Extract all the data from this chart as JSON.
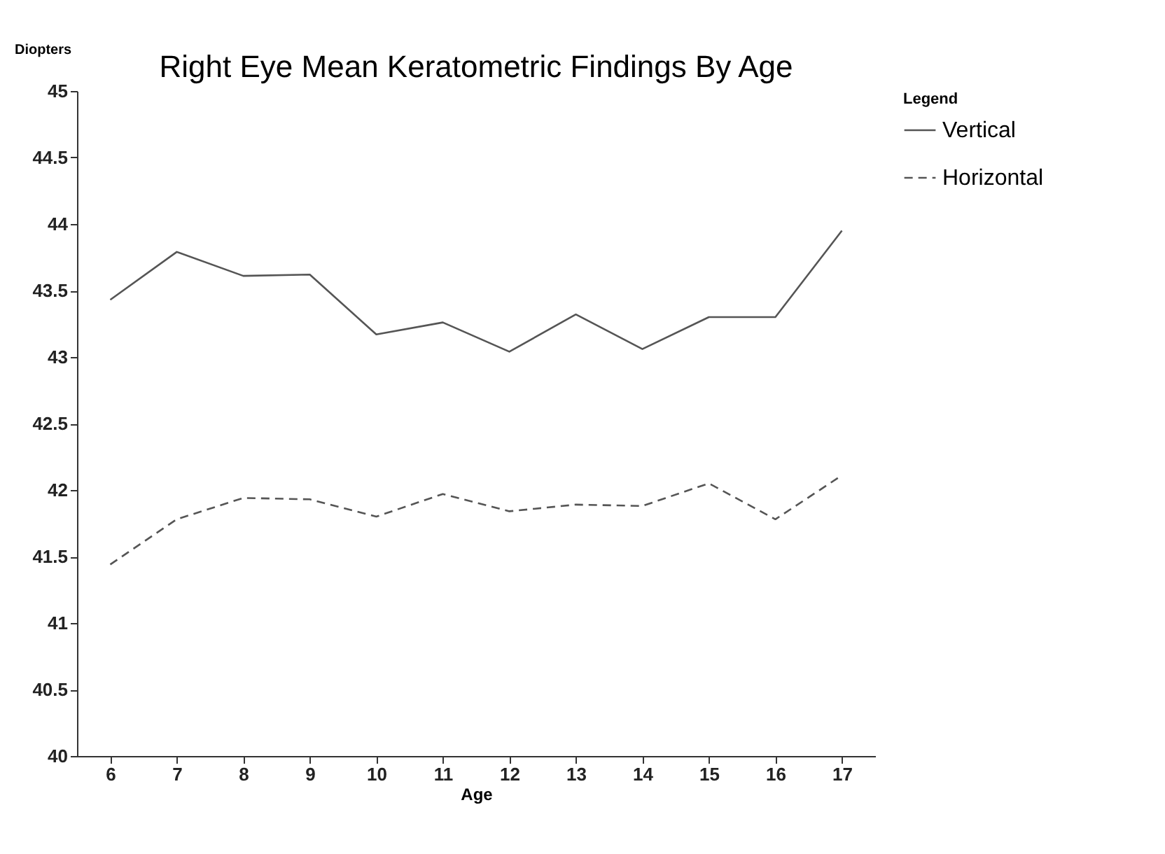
{
  "chart_data": {
    "type": "line",
    "title": "Right Eye Mean Keratometric Findings By Age",
    "xlabel": "Age",
    "ylabel": "Diopters",
    "legend_title": "Legend",
    "categories": [
      "6",
      "7",
      "8",
      "9",
      "10",
      "11",
      "12",
      "13",
      "14",
      "15",
      "16",
      "17"
    ],
    "series": [
      {
        "name": "Vertical",
        "color": "#555555",
        "line_style": "solid",
        "values": [
          43.43,
          43.79,
          43.61,
          43.62,
          43.17,
          43.26,
          43.04,
          43.32,
          43.06,
          43.3,
          43.3,
          43.95
        ]
      },
      {
        "name": "Horizontal",
        "color": "#555555",
        "line_style": "dashed",
        "values": [
          41.44,
          41.78,
          41.94,
          41.93,
          41.8,
          41.97,
          41.84,
          41.89,
          41.88,
          42.05,
          41.78,
          42.11
        ]
      }
    ],
    "ylim": [
      40,
      45
    ],
    "yticks": [
      40,
      40.5,
      41,
      41.5,
      42,
      42.5,
      43,
      43.5,
      44,
      44.5,
      45
    ],
    "grid": false,
    "legend": "right",
    "marker": "none"
  }
}
